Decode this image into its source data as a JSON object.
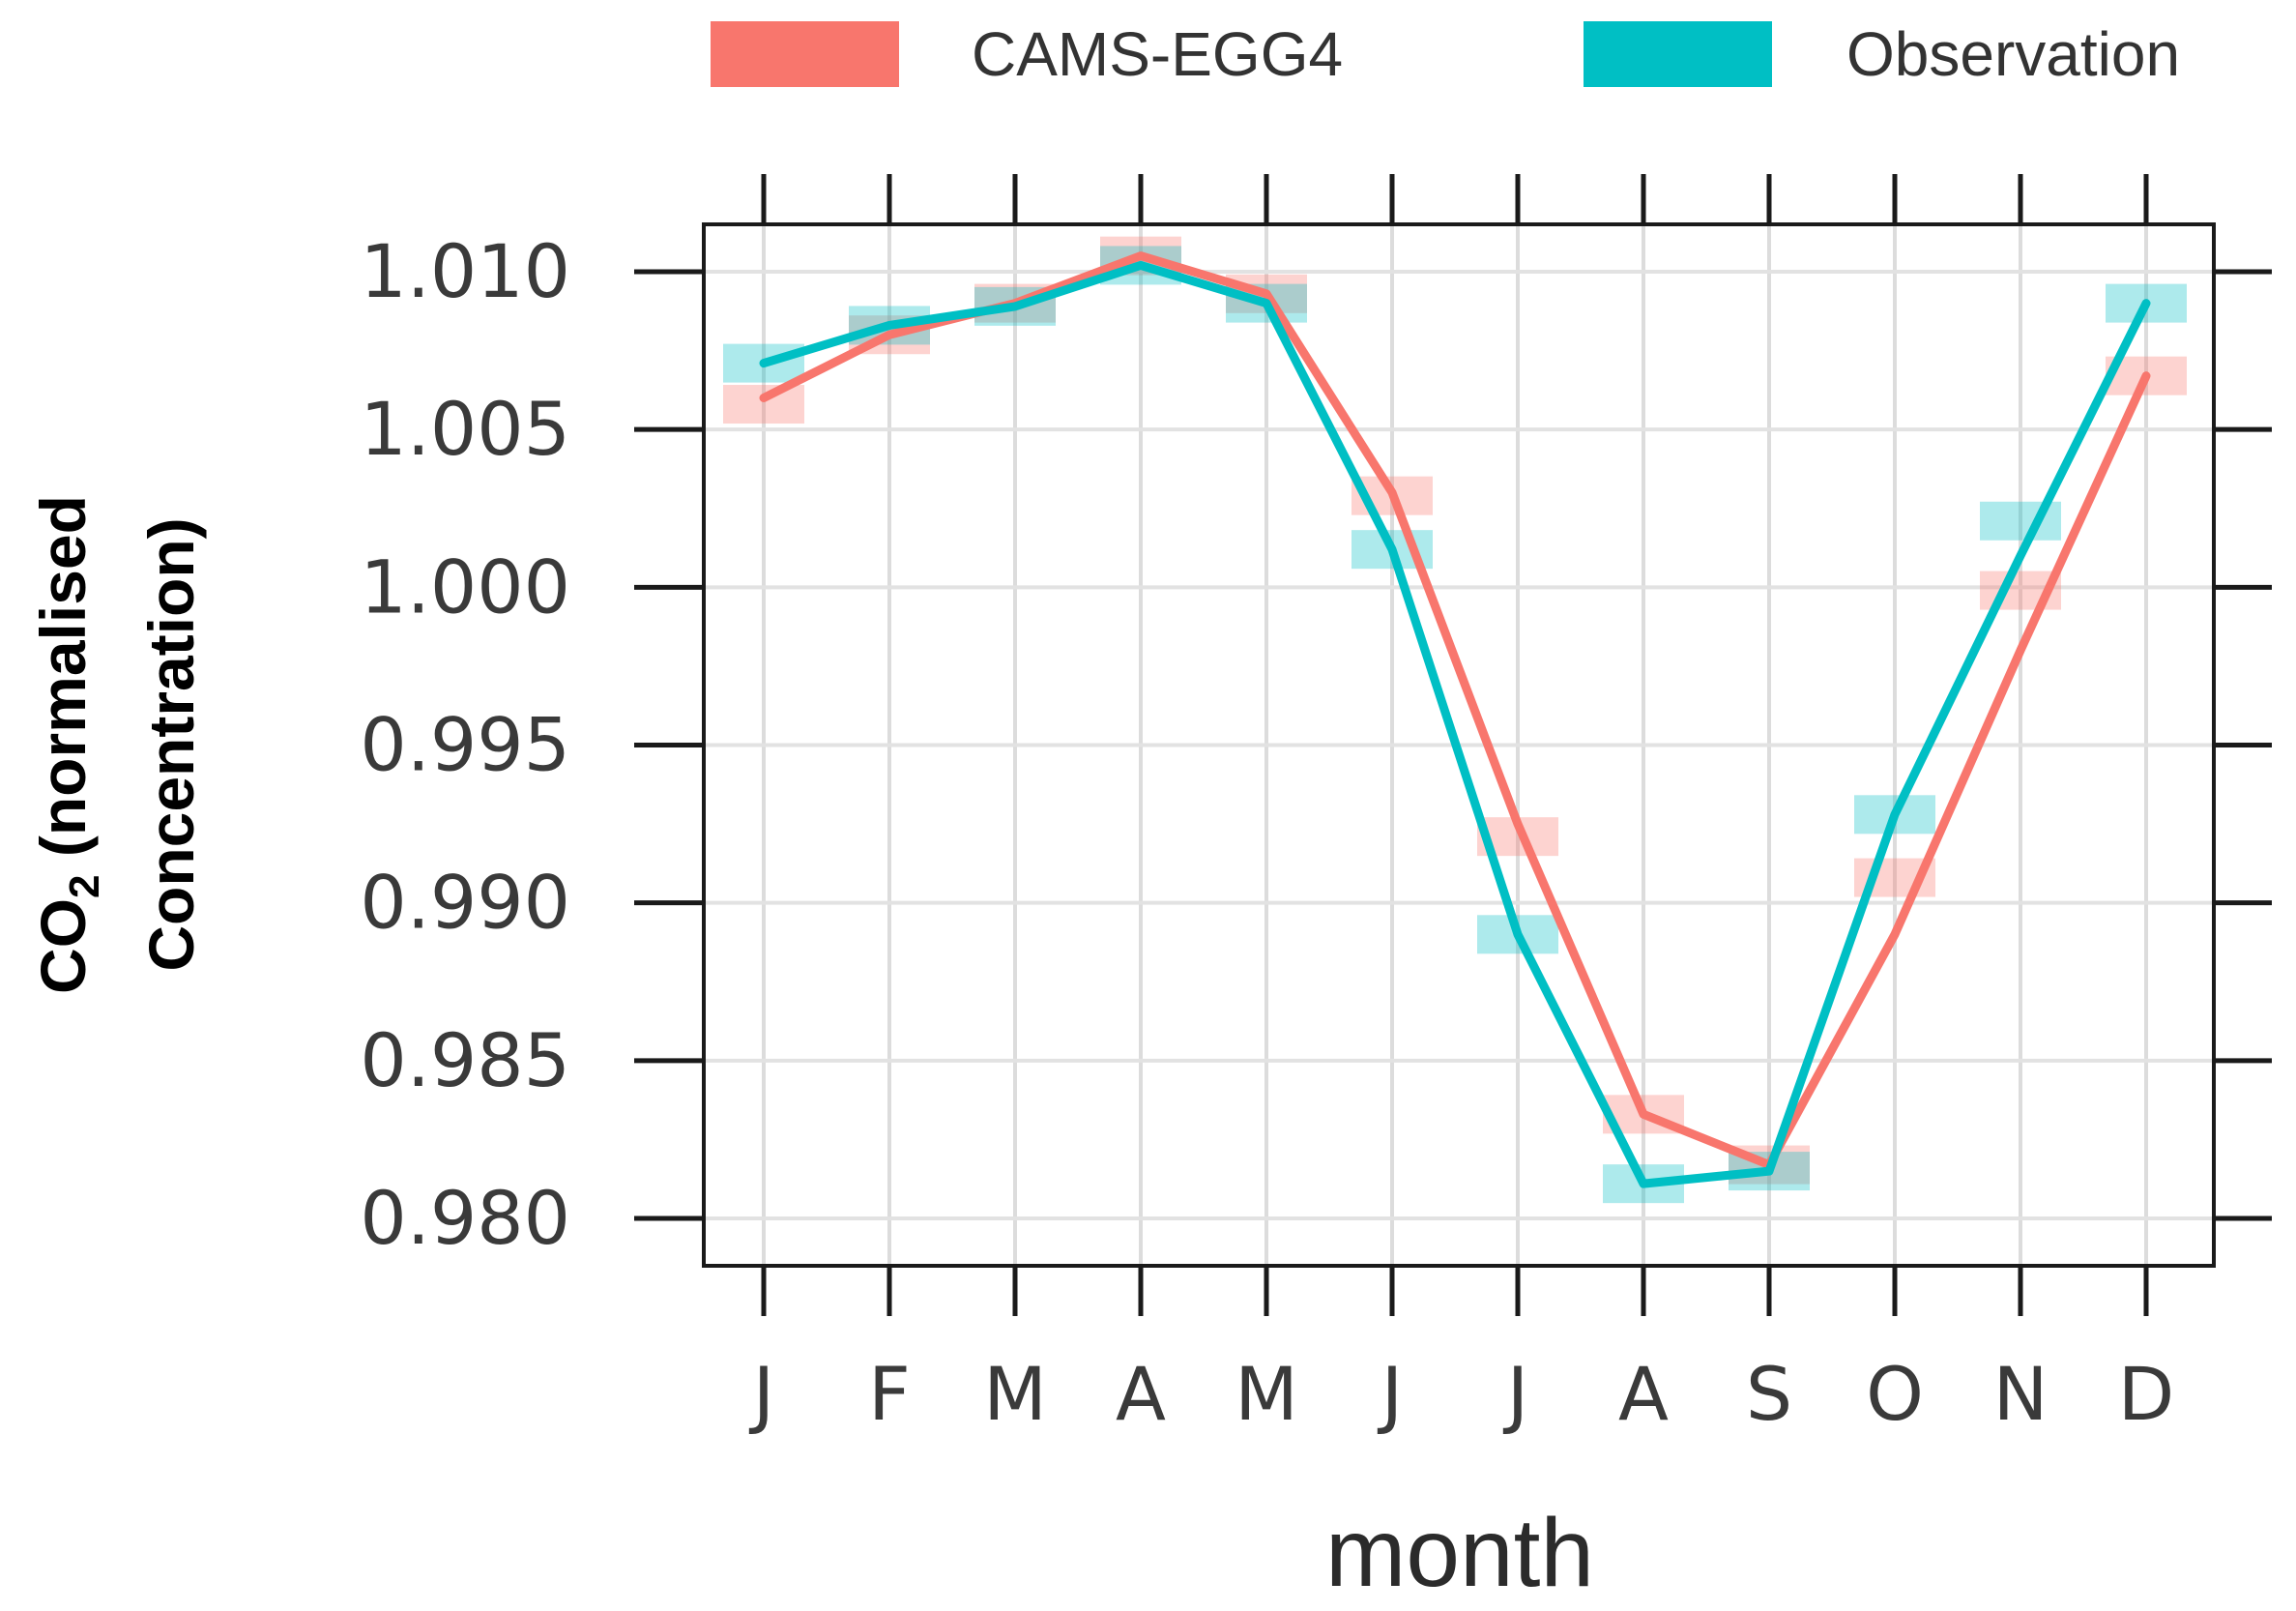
{
  "chart_data": {
    "type": "line",
    "title": "",
    "xlabel": "month",
    "ylabel": {
      "prefix": "CO",
      "subscript": "2",
      "line1_rest": " (normalised",
      "line2": "Concentration)"
    },
    "categories": [
      "J",
      "F",
      "M",
      "A",
      "M",
      "J",
      "J",
      "A",
      "S",
      "O",
      "N",
      "D"
    ],
    "ylim": [
      0.9785,
      1.0115
    ],
    "yticks": [
      0.98,
      0.985,
      0.99,
      0.995,
      1.0,
      1.005,
      1.01
    ],
    "ytick_labels": [
      "0.980",
      "0.985",
      "0.990",
      "0.995",
      "1.000",
      "1.005",
      "1.010"
    ],
    "grid": true,
    "legend_position": "top",
    "series": [
      {
        "name": "CAMS-EGG4",
        "color": "#F8766D",
        "points": [
          1.0058,
          1.008,
          1.009,
          1.0105,
          1.0093,
          1.0029,
          0.9921,
          0.9833,
          0.9817,
          0.9908,
          0.9999,
          1.0067
        ],
        "trend": [
          1.006,
          1.008,
          1.009,
          1.0105,
          1.0093,
          1.003,
          0.9925,
          0.9833,
          0.9817,
          0.989,
          0.998,
          1.0067
        ]
      },
      {
        "name": "Observation",
        "color": "#00BFC4",
        "points": [
          1.0071,
          1.0083,
          1.0089,
          1.0102,
          1.009,
          1.0012,
          0.989,
          0.9811,
          0.9815,
          0.9928,
          1.0021,
          1.009
        ],
        "trend": [
          1.0071,
          1.0083,
          1.0089,
          1.0102,
          1.009,
          1.0012,
          0.989,
          0.9811,
          0.9815,
          0.9928,
          1.001,
          1.009
        ]
      }
    ]
  }
}
